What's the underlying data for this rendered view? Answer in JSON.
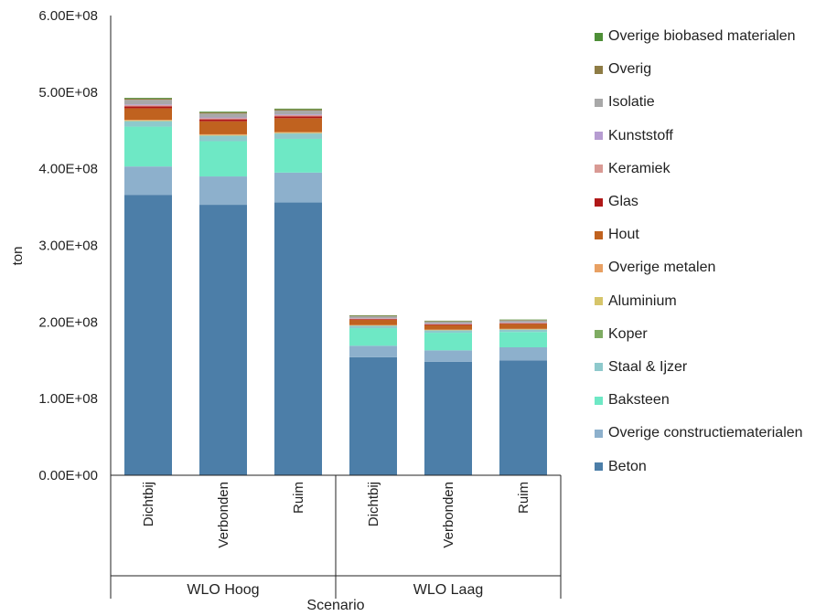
{
  "chart_data": {
    "type": "stacked-bar",
    "ylabel": "ton",
    "xlabel": "Scenario",
    "ylim": [
      0,
      600000000
    ],
    "yticks": [
      0,
      100000000,
      200000000,
      300000000,
      400000000,
      500000000,
      600000000
    ],
    "ytick_labels": [
      "0.00E+00",
      "1.00E+08",
      "2.00E+08",
      "3.00E+08",
      "4.00E+08",
      "5.00E+08",
      "6.00E+08"
    ],
    "grid": false,
    "legend_position": "right",
    "groups": [
      {
        "name": "WLO Hoog",
        "categories": [
          "Dichtbij",
          "Verbonden",
          "Ruim"
        ]
      },
      {
        "name": "WLO Laag",
        "categories": [
          "Dichtbij",
          "Verbonden",
          "Ruim"
        ]
      }
    ],
    "categories": [
      "Dichtbij",
      "Verbonden",
      "Ruim",
      "Dichtbij",
      "Verbonden",
      "Ruim"
    ],
    "series": [
      {
        "name": "Beton",
        "color": "#4c7ea8",
        "values": [
          366000000,
          353000000,
          356000000,
          154000000,
          148000000,
          150000000
        ]
      },
      {
        "name": "Overige constructiematerialen",
        "color": "#8db0cc",
        "values": [
          37000000,
          37000000,
          39000000,
          15000000,
          15000000,
          17000000
        ]
      },
      {
        "name": "Baksteen",
        "color": "#6ee8c5",
        "values": [
          52000000,
          46000000,
          44000000,
          23000000,
          23000000,
          20000000
        ]
      },
      {
        "name": "Staal & Ijzer",
        "color": "#8ec9cc",
        "values": [
          7000000,
          7000000,
          7000000,
          3000000,
          3000000,
          3000000
        ]
      },
      {
        "name": "Koper",
        "color": "#7fac63",
        "values": [
          500000,
          500000,
          500000,
          300000,
          300000,
          300000
        ]
      },
      {
        "name": "Aluminium",
        "color": "#d6c56a",
        "values": [
          500000,
          500000,
          500000,
          300000,
          300000,
          300000
        ]
      },
      {
        "name": "Overige metalen",
        "color": "#e8a063",
        "values": [
          1000000,
          1000000,
          1000000,
          500000,
          500000,
          500000
        ]
      },
      {
        "name": "Hout",
        "color": "#c0621f",
        "values": [
          15000000,
          17000000,
          18000000,
          7000000,
          6000000,
          6500000
        ]
      },
      {
        "name": "Glas",
        "color": "#b01818",
        "values": [
          2500000,
          2500000,
          2500000,
          800000,
          800000,
          800000
        ]
      },
      {
        "name": "Keramiek",
        "color": "#d99a94",
        "values": [
          1500000,
          1500000,
          1500000,
          600000,
          600000,
          600000
        ]
      },
      {
        "name": "Kunststoff",
        "color": "#b69cd1",
        "values": [
          1000000,
          1000000,
          1000000,
          500000,
          500000,
          500000
        ]
      },
      {
        "name": "Isolatie",
        "color": "#a8a8a8",
        "values": [
          6000000,
          5000000,
          5000000,
          2500000,
          2500000,
          2500000
        ]
      },
      {
        "name": "Overig",
        "color": "#8e7c45",
        "values": [
          1500000,
          1500000,
          1500000,
          700000,
          700000,
          700000
        ]
      },
      {
        "name": "Overige biobased materialen",
        "color": "#4e8f37",
        "values": [
          1000000,
          1000000,
          1000000,
          500000,
          500000,
          500000
        ]
      }
    ]
  }
}
